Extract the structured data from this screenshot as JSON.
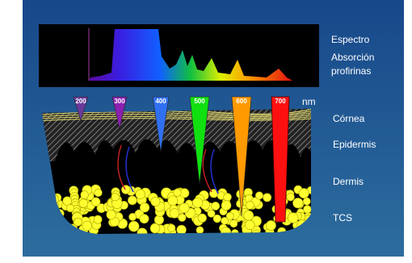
{
  "labels": {
    "spectrum": "Espectro",
    "absorption": "Absorción",
    "porphyrins": "profirinas",
    "unit": "nm",
    "cornea": "Córnea",
    "epidermis": "Epidermis",
    "dermis": "Dermis",
    "subcutaneous": "TCS"
  },
  "wavelengths": [
    "200",
    "300",
    "400",
    "500",
    "600",
    "700"
  ]
}
